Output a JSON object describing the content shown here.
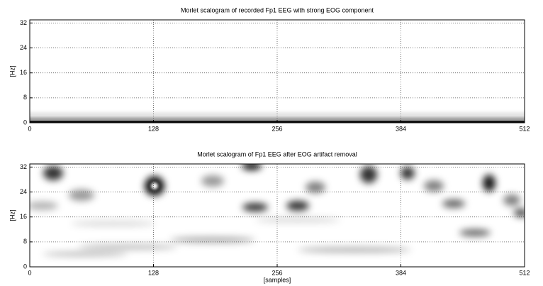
{
  "chart_data": [
    {
      "type": "heatmap",
      "title": "Morlet scalogram of recorded Fp1 EEG with strong EOG component",
      "y_label": "[Hz]",
      "xlim": [
        0,
        512
      ],
      "xticks": [
        0,
        128,
        256,
        384,
        512
      ],
      "ylim": [
        0,
        33
      ],
      "yticks": [
        0,
        8,
        16,
        24,
        32
      ],
      "grid": true,
      "colormap": "gray"
    },
    {
      "type": "heatmap",
      "title": "Morlet scalogram of Fp1 EEG after EOG artifact removal",
      "y_label": "[Hz]",
      "x_label": "[samples]",
      "xlim": [
        0,
        512
      ],
      "xticks": [
        0,
        128,
        256,
        384,
        512
      ],
      "ylim": [
        0,
        33
      ],
      "yticks": [
        0,
        8,
        16,
        24,
        32
      ],
      "grid": true,
      "colormap": "gray"
    }
  ]
}
